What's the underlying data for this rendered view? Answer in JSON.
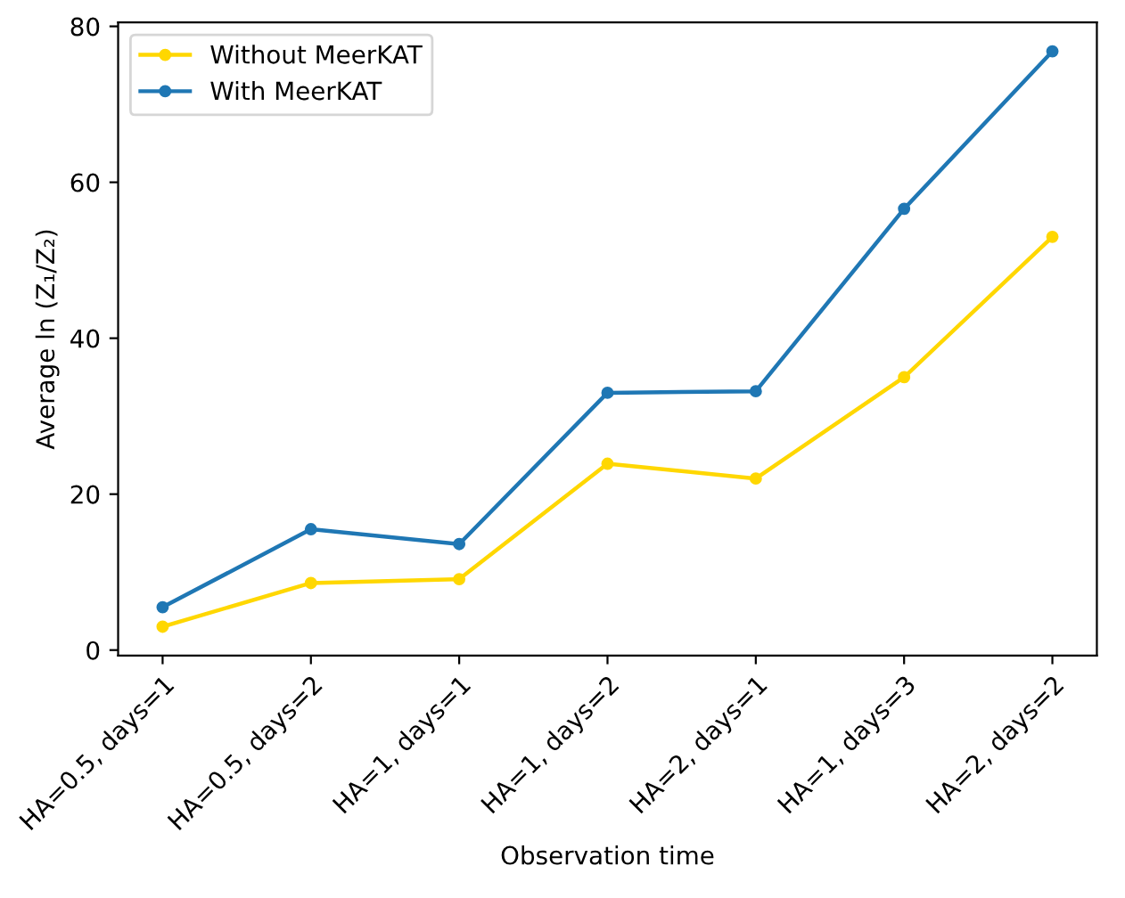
{
  "chart_data": {
    "type": "line",
    "xlabel": "Observation time",
    "ylabel": "Average ln (Z₁/Z₂)",
    "categories": [
      "HA=0.5, days=1",
      "HA=0.5, days=2",
      "HA=1, days=1",
      "HA=1, days=2",
      "HA=2, days=1",
      "HA=1, days=3",
      "HA=2, days=2"
    ],
    "series": [
      {
        "name": "Without MeerKAT",
        "color": "#ffd700",
        "values": [
          3.0,
          8.6,
          9.1,
          23.9,
          22.0,
          35.0,
          53.0
        ]
      },
      {
        "name": "With MeerKAT",
        "color": "#1f77b4",
        "values": [
          5.5,
          15.5,
          13.6,
          33.0,
          33.2,
          56.6,
          76.8
        ]
      }
    ],
    "ylim": [
      -0.7,
      80.5
    ],
    "yticks": [
      0,
      20,
      40,
      60,
      80
    ],
    "grid": false,
    "legend": "top left",
    "marker": "circle",
    "line_style": "solid"
  }
}
